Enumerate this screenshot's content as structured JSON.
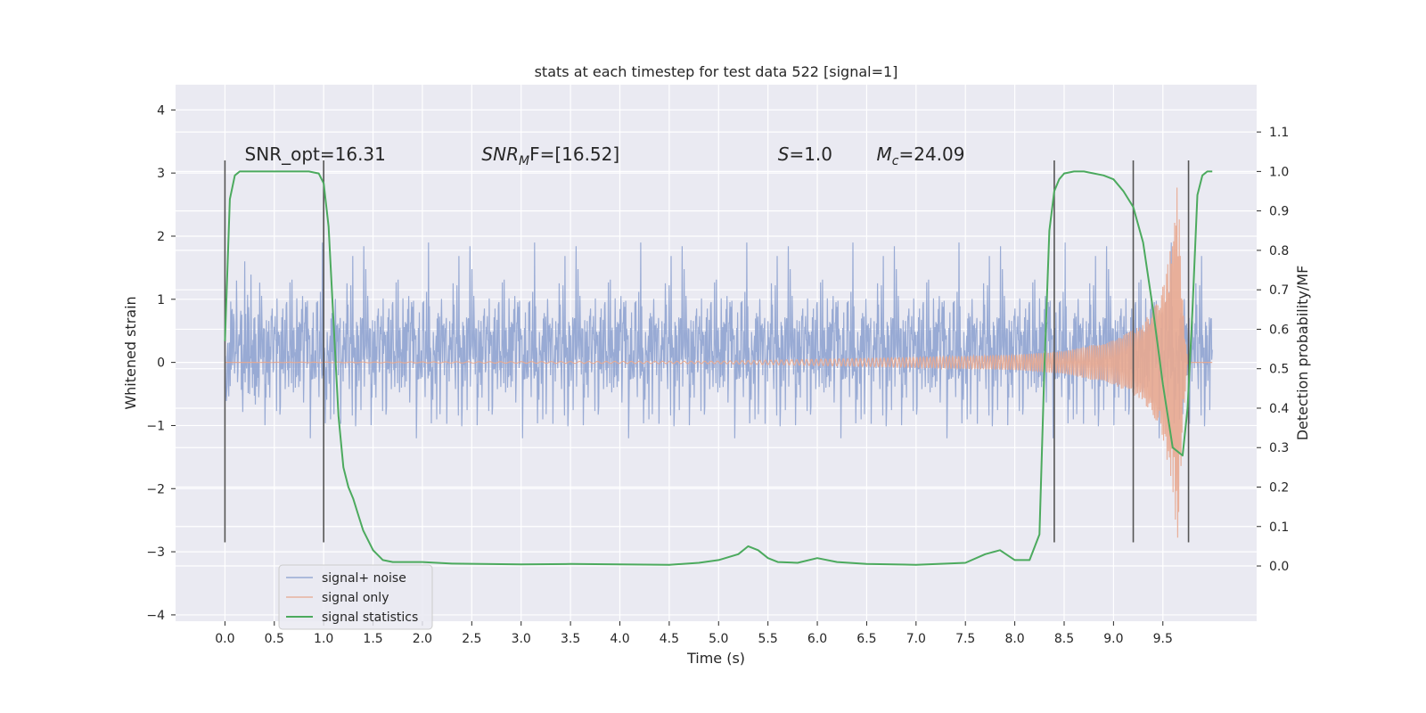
{
  "chart_data": {
    "type": "line",
    "title": "stats at each timestep for test data 522 [signal=1]",
    "xlabel": "Time (s)",
    "ylabel": "Whitened strain",
    "y2label": "Detection probability/MF",
    "xlim": [
      -0.5,
      10.45
    ],
    "ylim": [
      -4.1,
      4.4
    ],
    "y2lim": [
      -0.14,
      1.22
    ],
    "xticks": [
      0.0,
      0.5,
      1.0,
      1.5,
      2.0,
      2.5,
      3.0,
      3.5,
      4.0,
      4.5,
      5.0,
      5.5,
      6.0,
      6.5,
      7.0,
      7.5,
      8.0,
      8.5,
      9.0,
      9.5
    ],
    "yticks": [
      -4,
      -3,
      -2,
      -1,
      0,
      1,
      2,
      3,
      4
    ],
    "y2ticks": [
      0.0,
      0.1,
      0.2,
      0.3,
      0.4,
      0.5,
      0.6,
      0.7,
      0.8,
      0.9,
      1.0,
      1.1
    ],
    "xtick_labels": [
      "0.0",
      "0.5",
      "1.0",
      "1.5",
      "2.0",
      "2.5",
      "3.0",
      "3.5",
      "4.0",
      "4.5",
      "5.0",
      "5.5",
      "6.0",
      "6.5",
      "7.0",
      "7.5",
      "8.0",
      "8.5",
      "9.0",
      "9.5"
    ],
    "ytick_labels": [
      "−4",
      "−3",
      "−2",
      "−1",
      "0",
      "1",
      "2",
      "3",
      "4"
    ],
    "y2tick_labels": [
      "0.0",
      "0.1",
      "0.2",
      "0.3",
      "0.4",
      "0.5",
      "0.6",
      "0.7",
      "0.8",
      "0.9",
      "1.0",
      "1.1"
    ],
    "grid": true,
    "legend_position": "lower-left",
    "annotations": [
      {
        "text": "SNR_opt=16.31",
        "x": 0.2,
        "y": 3.2,
        "style": "normal"
      },
      {
        "text": "SNR",
        "sub": "M",
        "after": "F=[16.52]",
        "x": 2.6,
        "y": 3.2,
        "style": "math"
      },
      {
        "text": "S",
        "after": "=1.0",
        "x": 5.6,
        "y": 3.2,
        "style": "math"
      },
      {
        "text": "M",
        "sub": "c",
        "after": "=24.09",
        "x": 6.6,
        "y": 3.2,
        "style": "math"
      }
    ],
    "vlines": {
      "x": [
        0.0,
        1.0,
        8.4,
        9.2,
        9.76
      ],
      "ymin": -2.85,
      "ymax": 3.2,
      "color": "#555555"
    },
    "series": [
      {
        "name": "signal+ noise",
        "color": "#8a9fcf",
        "axis": "left",
        "x_range": [
          0.0,
          10.0
        ],
        "samples": 2048,
        "envelope": {
          "typical": 1.15,
          "peak": 2.7
        }
      },
      {
        "name": "signal only",
        "color": "#e8a890",
        "axis": "left",
        "description_points": [
          [
            0.0,
            0.0
          ],
          [
            5.0,
            0.02
          ],
          [
            6.0,
            0.05
          ],
          [
            7.0,
            0.08
          ],
          [
            8.0,
            0.12
          ],
          [
            8.5,
            0.18
          ],
          [
            9.0,
            0.35
          ],
          [
            9.3,
            0.6
          ],
          [
            9.5,
            1.2
          ],
          [
            9.6,
            2.0
          ],
          [
            9.65,
            2.95
          ],
          [
            9.7,
            1.0
          ],
          [
            9.75,
            0.0
          ],
          [
            10.0,
            0.0
          ]
        ]
      },
      {
        "name": "signal statistics",
        "color": "#4caa5e",
        "axis": "right",
        "x": [
          0.0,
          0.05,
          0.1,
          0.15,
          0.2,
          0.3,
          0.5,
          0.7,
          0.85,
          0.95,
          1.0,
          1.05,
          1.1,
          1.15,
          1.2,
          1.25,
          1.3,
          1.35,
          1.4,
          1.5,
          1.6,
          1.7,
          1.8,
          2.0,
          2.3,
          2.6,
          3.0,
          3.5,
          4.0,
          4.5,
          4.8,
          5.0,
          5.2,
          5.3,
          5.4,
          5.5,
          5.6,
          5.8,
          6.0,
          6.2,
          6.5,
          7.0,
          7.5,
          7.7,
          7.85,
          8.0,
          8.15,
          8.25,
          8.3,
          8.35,
          8.4,
          8.45,
          8.5,
          8.6,
          8.7,
          8.9,
          9.0,
          9.1,
          9.2,
          9.3,
          9.4,
          9.5,
          9.6,
          9.7,
          9.75,
          9.8,
          9.85,
          9.9,
          9.95,
          10.0
        ],
        "values": [
          0.57,
          0.93,
          0.99,
          1.0,
          1.0,
          1.0,
          1.0,
          1.0,
          1.0,
          0.995,
          0.97,
          0.86,
          0.62,
          0.38,
          0.25,
          0.2,
          0.17,
          0.13,
          0.09,
          0.04,
          0.015,
          0.01,
          0.01,
          0.01,
          0.006,
          0.005,
          0.004,
          0.005,
          0.004,
          0.003,
          0.008,
          0.015,
          0.03,
          0.05,
          0.04,
          0.02,
          0.01,
          0.008,
          0.02,
          0.01,
          0.005,
          0.003,
          0.008,
          0.03,
          0.04,
          0.015,
          0.015,
          0.08,
          0.5,
          0.85,
          0.95,
          0.98,
          0.995,
          1.0,
          1.0,
          0.99,
          0.98,
          0.95,
          0.91,
          0.82,
          0.65,
          0.46,
          0.3,
          0.28,
          0.4,
          0.65,
          0.94,
          0.99,
          1.0,
          1.0
        ]
      }
    ]
  }
}
